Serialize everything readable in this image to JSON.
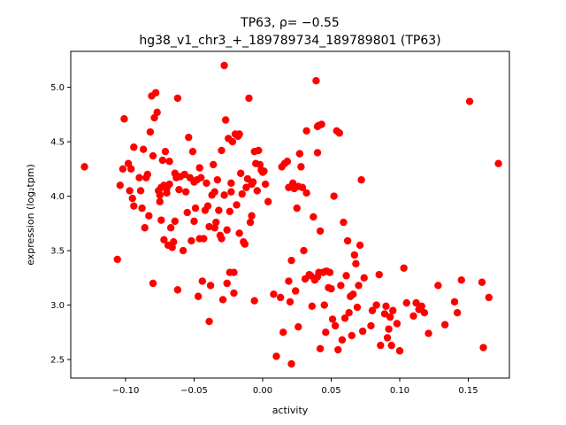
{
  "chart_data": {
    "type": "scatter",
    "title_line1": "TP63, ρ= −0.55",
    "title_line2": "hg38_v1_chr3_+_189789734_189789801 (TP63)",
    "xlabel": "activity",
    "ylabel": "expression (log₂tpm)",
    "xlim": [
      -0.14,
      0.18
    ],
    "ylim": [
      2.33,
      5.33
    ],
    "xticks": [
      {
        "value": -0.1,
        "label": "−0.10"
      },
      {
        "value": -0.05,
        "label": "−0.05"
      },
      {
        "value": 0.0,
        "label": "0.00"
      },
      {
        "value": 0.05,
        "label": "0.05"
      },
      {
        "value": 0.1,
        "label": "0.10"
      },
      {
        "value": 0.15,
        "label": "0.15"
      }
    ],
    "yticks": [
      {
        "value": 2.5,
        "label": "2.5"
      },
      {
        "value": 3.0,
        "label": "3.0"
      },
      {
        "value": 3.5,
        "label": "3.5"
      },
      {
        "value": 4.0,
        "label": "4.0"
      },
      {
        "value": 4.5,
        "label": "4.5"
      },
      {
        "value": 5.0,
        "label": "5.0"
      }
    ],
    "marker_color": "#ff0000",
    "grid": false,
    "points": [
      [
        -0.13,
        4.27
      ],
      [
        -0.106,
        3.42
      ],
      [
        -0.104,
        4.1
      ],
      [
        -0.101,
        4.71
      ],
      [
        -0.102,
        4.25
      ],
      [
        -0.098,
        4.3
      ],
      [
        -0.097,
        4.05
      ],
      [
        -0.096,
        4.25
      ],
      [
        -0.095,
        3.98
      ],
      [
        -0.094,
        3.91
      ],
      [
        -0.094,
        4.45
      ],
      [
        -0.09,
        4.17
      ],
      [
        -0.089,
        4.05
      ],
      [
        -0.088,
        3.89
      ],
      [
        -0.087,
        4.43
      ],
      [
        -0.086,
        3.71
      ],
      [
        -0.085,
        4.17
      ],
      [
        -0.084,
        4.2
      ],
      [
        -0.083,
        3.82
      ],
      [
        -0.082,
        4.59
      ],
      [
        -0.081,
        4.92
      ],
      [
        -0.08,
        4.37
      ],
      [
        -0.08,
        3.2
      ],
      [
        -0.079,
        4.72
      ],
      [
        -0.078,
        4.95
      ],
      [
        -0.077,
        4.77
      ],
      [
        -0.076,
        4.05
      ],
      [
        -0.075,
        4.01
      ],
      [
        -0.075,
        3.95
      ],
      [
        -0.074,
        3.78
      ],
      [
        -0.074,
        4.08
      ],
      [
        -0.073,
        4.33
      ],
      [
        -0.072,
        4.1
      ],
      [
        -0.072,
        3.6
      ],
      [
        -0.071,
        4.41
      ],
      [
        -0.07,
        4.03
      ],
      [
        -0.07,
        4.07
      ],
      [
        -0.069,
        3.55
      ],
      [
        -0.068,
        4.32
      ],
      [
        -0.068,
        4.11
      ],
      [
        -0.067,
        3.71
      ],
      [
        -0.066,
        3.53
      ],
      [
        -0.065,
        3.58
      ],
      [
        -0.064,
        3.77
      ],
      [
        -0.064,
        4.21
      ],
      [
        -0.063,
        4.17
      ],
      [
        -0.062,
        4.9
      ],
      [
        -0.062,
        3.14
      ],
      [
        -0.061,
        4.06
      ],
      [
        -0.06,
        4.18
      ],
      [
        -0.058,
        3.5
      ],
      [
        -0.057,
        4.2
      ],
      [
        -0.056,
        4.04
      ],
      [
        -0.055,
        3.85
      ],
      [
        -0.054,
        4.54
      ],
      [
        -0.053,
        4.17
      ],
      [
        -0.052,
        3.59
      ],
      [
        -0.051,
        4.41
      ],
      [
        -0.05,
        4.13
      ],
      [
        -0.05,
        3.77
      ],
      [
        -0.049,
        3.89
      ],
      [
        -0.048,
        4.15
      ],
      [
        -0.047,
        3.08
      ],
      [
        -0.046,
        3.61
      ],
      [
        -0.046,
        4.26
      ],
      [
        -0.045,
        4.17
      ],
      [
        -0.044,
        3.22
      ],
      [
        -0.043,
        3.61
      ],
      [
        -0.042,
        3.87
      ],
      [
        -0.041,
        4.12
      ],
      [
        -0.04,
        3.91
      ],
      [
        -0.039,
        3.72
      ],
      [
        -0.039,
        2.85
      ],
      [
        -0.038,
        3.18
      ],
      [
        -0.037,
        4.01
      ],
      [
        -0.036,
        4.29
      ],
      [
        -0.035,
        3.71
      ],
      [
        -0.035,
        4.04
      ],
      [
        -0.034,
        3.76
      ],
      [
        -0.033,
        4.15
      ],
      [
        -0.032,
        3.87
      ],
      [
        -0.031,
        3.64
      ],
      [
        -0.03,
        3.61
      ],
      [
        -0.03,
        4.42
      ],
      [
        -0.029,
        3.05
      ],
      [
        -0.028,
        4.01
      ],
      [
        -0.028,
        5.2
      ],
      [
        -0.027,
        4.7
      ],
      [
        -0.026,
        3.2
      ],
      [
        -0.026,
        3.69
      ],
      [
        -0.025,
        4.53
      ],
      [
        -0.024,
        3.86
      ],
      [
        -0.024,
        3.3
      ],
      [
        -0.023,
        4.12
      ],
      [
        -0.023,
        4.04
      ],
      [
        -0.022,
        4.5
      ],
      [
        -0.021,
        3.11
      ],
      [
        -0.021,
        3.3
      ],
      [
        -0.02,
        4.57
      ],
      [
        -0.019,
        3.92
      ],
      [
        -0.018,
        4.55
      ],
      [
        -0.017,
        4.57
      ],
      [
        -0.017,
        3.66
      ],
      [
        -0.016,
        4.21
      ],
      [
        -0.015,
        4.02
      ],
      [
        -0.014,
        3.58
      ],
      [
        -0.013,
        3.56
      ],
      [
        -0.012,
        4.08
      ],
      [
        -0.011,
        4.16
      ],
      [
        -0.01,
        4.9
      ],
      [
        -0.009,
        3.76
      ],
      [
        -0.008,
        3.82
      ],
      [
        -0.008,
        4.11
      ],
      [
        -0.007,
        4.13
      ],
      [
        -0.006,
        3.04
      ],
      [
        -0.006,
        4.41
      ],
      [
        -0.005,
        4.3
      ],
      [
        -0.004,
        4.05
      ],
      [
        -0.003,
        4.42
      ],
      [
        -0.002,
        4.29
      ],
      [
        -0.001,
        4.24
      ],
      [
        0.0,
        4.22
      ],
      [
        0.001,
        4.23
      ],
      [
        0.002,
        4.11
      ],
      [
        0.004,
        3.95
      ],
      [
        0.008,
        3.1
      ],
      [
        0.01,
        2.53
      ],
      [
        0.013,
        3.07
      ],
      [
        0.014,
        4.27
      ],
      [
        0.015,
        2.75
      ],
      [
        0.016,
        4.3
      ],
      [
        0.018,
        4.32
      ],
      [
        0.019,
        4.08
      ],
      [
        0.019,
        3.22
      ],
      [
        0.02,
        3.03
      ],
      [
        0.021,
        3.41
      ],
      [
        0.021,
        2.46
      ],
      [
        0.022,
        4.12
      ],
      [
        0.023,
        4.07
      ],
      [
        0.024,
        3.13
      ],
      [
        0.025,
        3.89
      ],
      [
        0.026,
        2.8
      ],
      [
        0.026,
        4.09
      ],
      [
        0.027,
        4.39
      ],
      [
        0.028,
        4.27
      ],
      [
        0.029,
        4.08
      ],
      [
        0.03,
        3.5
      ],
      [
        0.031,
        3.24
      ],
      [
        0.032,
        4.03
      ],
      [
        0.032,
        4.6
      ],
      [
        0.034,
        3.28
      ],
      [
        0.035,
        3.27
      ],
      [
        0.036,
        2.99
      ],
      [
        0.037,
        3.81
      ],
      [
        0.038,
        3.23
      ],
      [
        0.039,
        5.06
      ],
      [
        0.04,
        4.4
      ],
      [
        0.04,
        4.64
      ],
      [
        0.04,
        3.26
      ],
      [
        0.041,
        3.3
      ],
      [
        0.041,
        4.65
      ],
      [
        0.042,
        3.68
      ],
      [
        0.042,
        2.6
      ],
      [
        0.043,
        4.66
      ],
      [
        0.044,
        3.3
      ],
      [
        0.045,
        3.0
      ],
      [
        0.046,
        3.31
      ],
      [
        0.046,
        2.75
      ],
      [
        0.047,
        3.31
      ],
      [
        0.048,
        3.16
      ],
      [
        0.049,
        3.3
      ],
      [
        0.05,
        3.15
      ],
      [
        0.051,
        2.87
      ],
      [
        0.052,
        4.0
      ],
      [
        0.053,
        2.81
      ],
      [
        0.054,
        4.6
      ],
      [
        0.055,
        2.59
      ],
      [
        0.056,
        4.58
      ],
      [
        0.057,
        3.18
      ],
      [
        0.058,
        2.68
      ],
      [
        0.059,
        3.76
      ],
      [
        0.06,
        2.88
      ],
      [
        0.061,
        3.27
      ],
      [
        0.062,
        3.59
      ],
      [
        0.063,
        2.93
      ],
      [
        0.064,
        3.08
      ],
      [
        0.065,
        2.72
      ],
      [
        0.066,
        3.1
      ],
      [
        0.067,
        3.46
      ],
      [
        0.068,
        3.38
      ],
      [
        0.069,
        2.98
      ],
      [
        0.07,
        3.18
      ],
      [
        0.071,
        3.55
      ],
      [
        0.072,
        4.15
      ],
      [
        0.073,
        2.76
      ],
      [
        0.074,
        3.25
      ],
      [
        0.079,
        2.81
      ],
      [
        0.08,
        2.95
      ],
      [
        0.083,
        3.0
      ],
      [
        0.085,
        3.28
      ],
      [
        0.086,
        2.63
      ],
      [
        0.089,
        2.92
      ],
      [
        0.09,
        2.99
      ],
      [
        0.091,
        2.7
      ],
      [
        0.092,
        2.78
      ],
      [
        0.093,
        2.89
      ],
      [
        0.094,
        2.63
      ],
      [
        0.095,
        2.95
      ],
      [
        0.098,
        2.83
      ],
      [
        0.1,
        2.58
      ],
      [
        0.103,
        3.34
      ],
      [
        0.105,
        3.02
      ],
      [
        0.11,
        2.9
      ],
      [
        0.112,
        3.02
      ],
      [
        0.114,
        2.96
      ],
      [
        0.116,
        2.99
      ],
      [
        0.118,
        2.93
      ],
      [
        0.121,
        2.74
      ],
      [
        0.128,
        3.18
      ],
      [
        0.133,
        2.82
      ],
      [
        0.14,
        3.03
      ],
      [
        0.142,
        2.93
      ],
      [
        0.145,
        3.23
      ],
      [
        0.151,
        4.87
      ],
      [
        0.16,
        3.21
      ],
      [
        0.161,
        2.61
      ],
      [
        0.165,
        3.07
      ],
      [
        0.172,
        4.3
      ]
    ]
  }
}
